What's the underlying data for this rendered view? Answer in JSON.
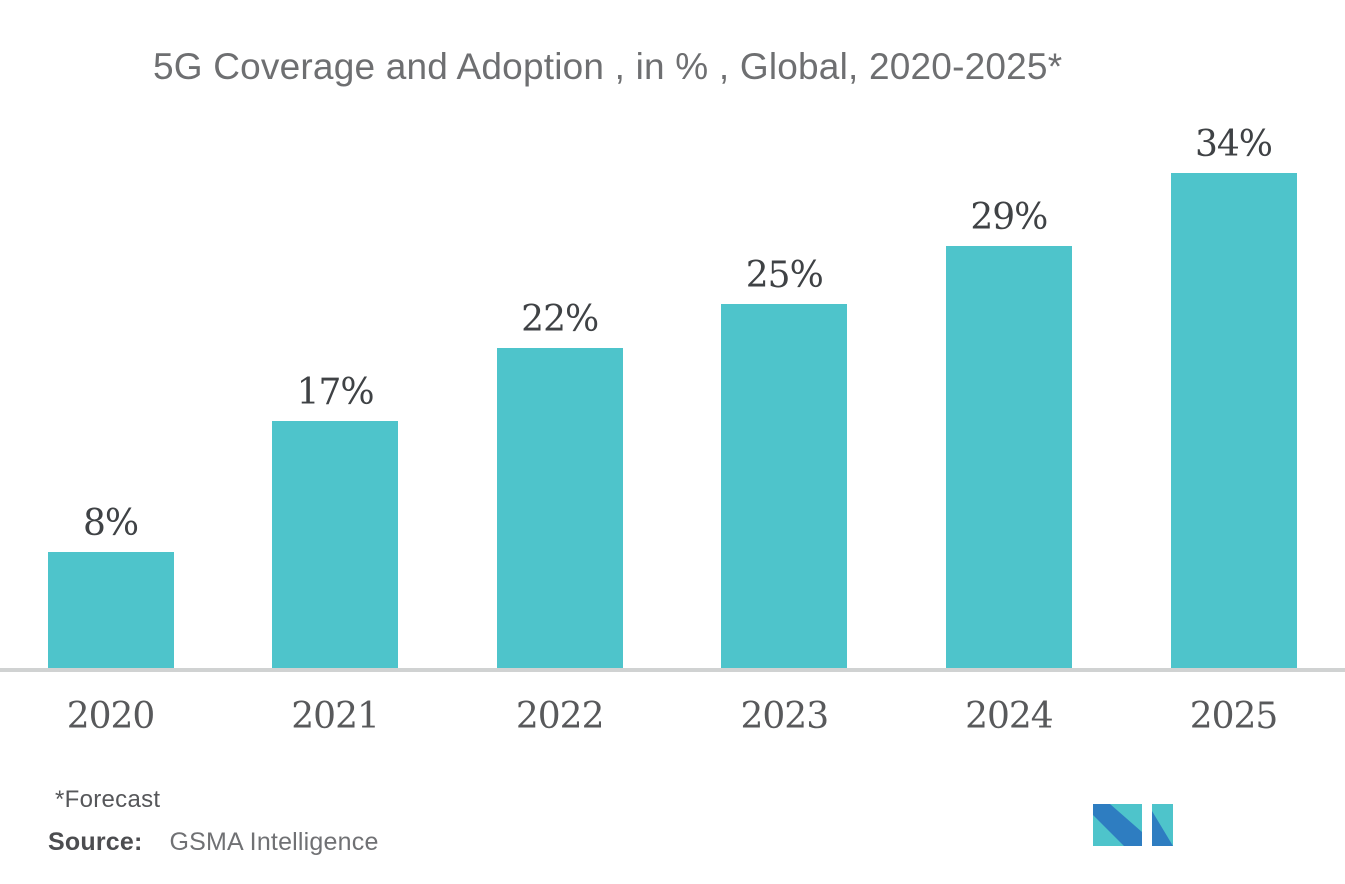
{
  "chart_data": {
    "type": "bar",
    "title": "5G Coverage and Adoption , in % , Global, 2020-2025*",
    "categories": [
      "2020",
      "2021",
      "2022",
      "2023",
      "2024",
      "2025"
    ],
    "values": [
      8,
      17,
      22,
      25,
      29,
      34
    ],
    "value_labels": [
      "8%",
      "17%",
      "22%",
      "25%",
      "29%",
      "34%"
    ],
    "xlabel": "",
    "ylabel": "",
    "ylim": [
      0,
      38
    ],
    "grid": false,
    "legend": false,
    "bar_color": "#4ec4cb",
    "value_label_color": "#3f4245",
    "category_label_color": "#58595b",
    "axis_line_color": "#d0d2d2",
    "title_color": "#6e6f71"
  },
  "footer": {
    "forecast_note": "*Forecast",
    "source_label": "Source:",
    "source_value": "GSMA Intelligence"
  },
  "logo": {
    "name": "mordor-intelligence-logo",
    "colors": {
      "blue": "#2e7dc1",
      "teal": "#4ec4cb"
    }
  }
}
